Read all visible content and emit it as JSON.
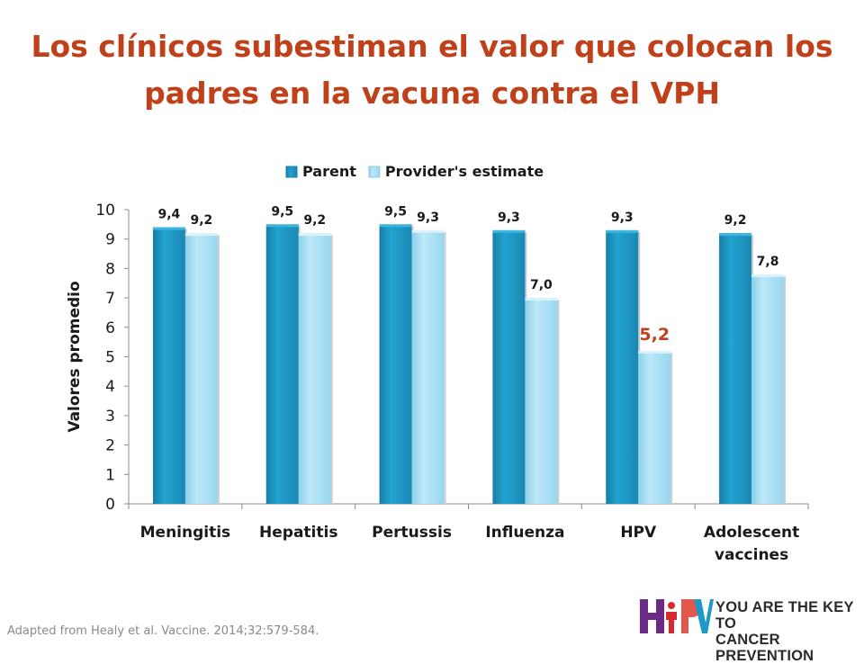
{
  "title": "Los clínicos subestiman el valor que colocan los padres en la vacuna contra el VPH",
  "citation": "Adapted from Healy et al.  Vaccine. 2014;32:579-584.",
  "logo": {
    "text": "HPV",
    "tagline_line1": "YOU ARE THE KEY TO",
    "tagline_line2": "CANCER PREVENTION"
  },
  "chart_data": {
    "type": "bar",
    "categories": [
      [
        "Meningitis"
      ],
      [
        "Hepatitis"
      ],
      [
        "Pertussis"
      ],
      [
        "Influenza"
      ],
      [
        "HPV"
      ],
      [
        "Adolescent",
        "vaccines"
      ]
    ],
    "series": [
      {
        "name": "Parent",
        "values": [
          9.4,
          9.5,
          9.5,
          9.3,
          9.3,
          9.2
        ],
        "labels": [
          "9,4",
          "9,5",
          "9,5",
          "9,3",
          "9,3",
          "9,2"
        ],
        "color": "#1e98c4"
      },
      {
        "name": "Provider's estimate",
        "values": [
          9.2,
          9.2,
          9.3,
          7.0,
          5.2,
          7.8
        ],
        "labels": [
          "9,2",
          "9,2",
          "9,3",
          "7,0",
          "5,2",
          "7,8"
        ],
        "color": "#a6def5"
      }
    ],
    "highlight": {
      "series": 1,
      "index": 4,
      "color": "#c0401a"
    },
    "ylabel": "Valores promedio",
    "xlabel": "",
    "ylim": [
      0,
      10
    ],
    "yticks": [
      0,
      1,
      2,
      3,
      4,
      5,
      6,
      7,
      8,
      9,
      10
    ],
    "legend": "top",
    "grid": false
  }
}
